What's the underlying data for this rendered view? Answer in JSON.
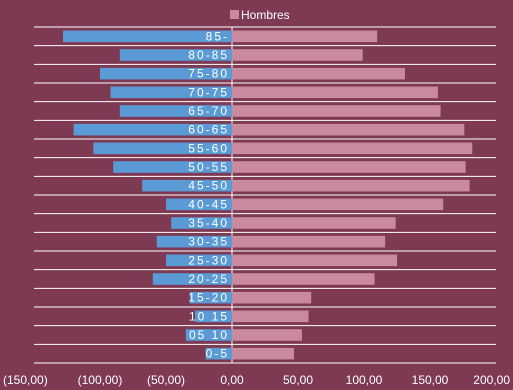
{
  "chart_data": {
    "type": "bar",
    "orientation": "horizontal",
    "categories": [
      "0-5",
      "05 10",
      "10 15",
      "15-20",
      "20-25",
      "25-30",
      "30-35",
      "35-40",
      "40-45",
      "45-50",
      "50-55",
      "55-60",
      "60-65",
      "65-70",
      "70-75",
      "75-80",
      "80-85",
      "85-"
    ],
    "series": [
      {
        "name": "",
        "color": "#5b9bd5",
        "values": [
          -20,
          -35,
          -28,
          -32,
          -60,
          -50,
          -57,
          -46,
          -50,
          -68,
          -90,
          -105,
          -120,
          -85,
          -92,
          -100,
          -85,
          -128
        ]
      },
      {
        "name": "Hombres",
        "color": "#c98aa0",
        "values": [
          47,
          53,
          58,
          60,
          108,
          125,
          116,
          124,
          160,
          180,
          177,
          182,
          176,
          158,
          156,
          131,
          99,
          110
        ]
      }
    ],
    "xlim": [
      -150,
      200
    ],
    "x_ticks": [
      "(150,00)",
      "(100,00)",
      "(50,00)",
      "0,00",
      "50,00",
      "100,00",
      "150,00",
      "200,00"
    ],
    "grid": "horizontal",
    "legend": "top"
  },
  "colors": {
    "background": "#7e3a52",
    "grid": "#ffffff",
    "text": "#ffffff"
  }
}
